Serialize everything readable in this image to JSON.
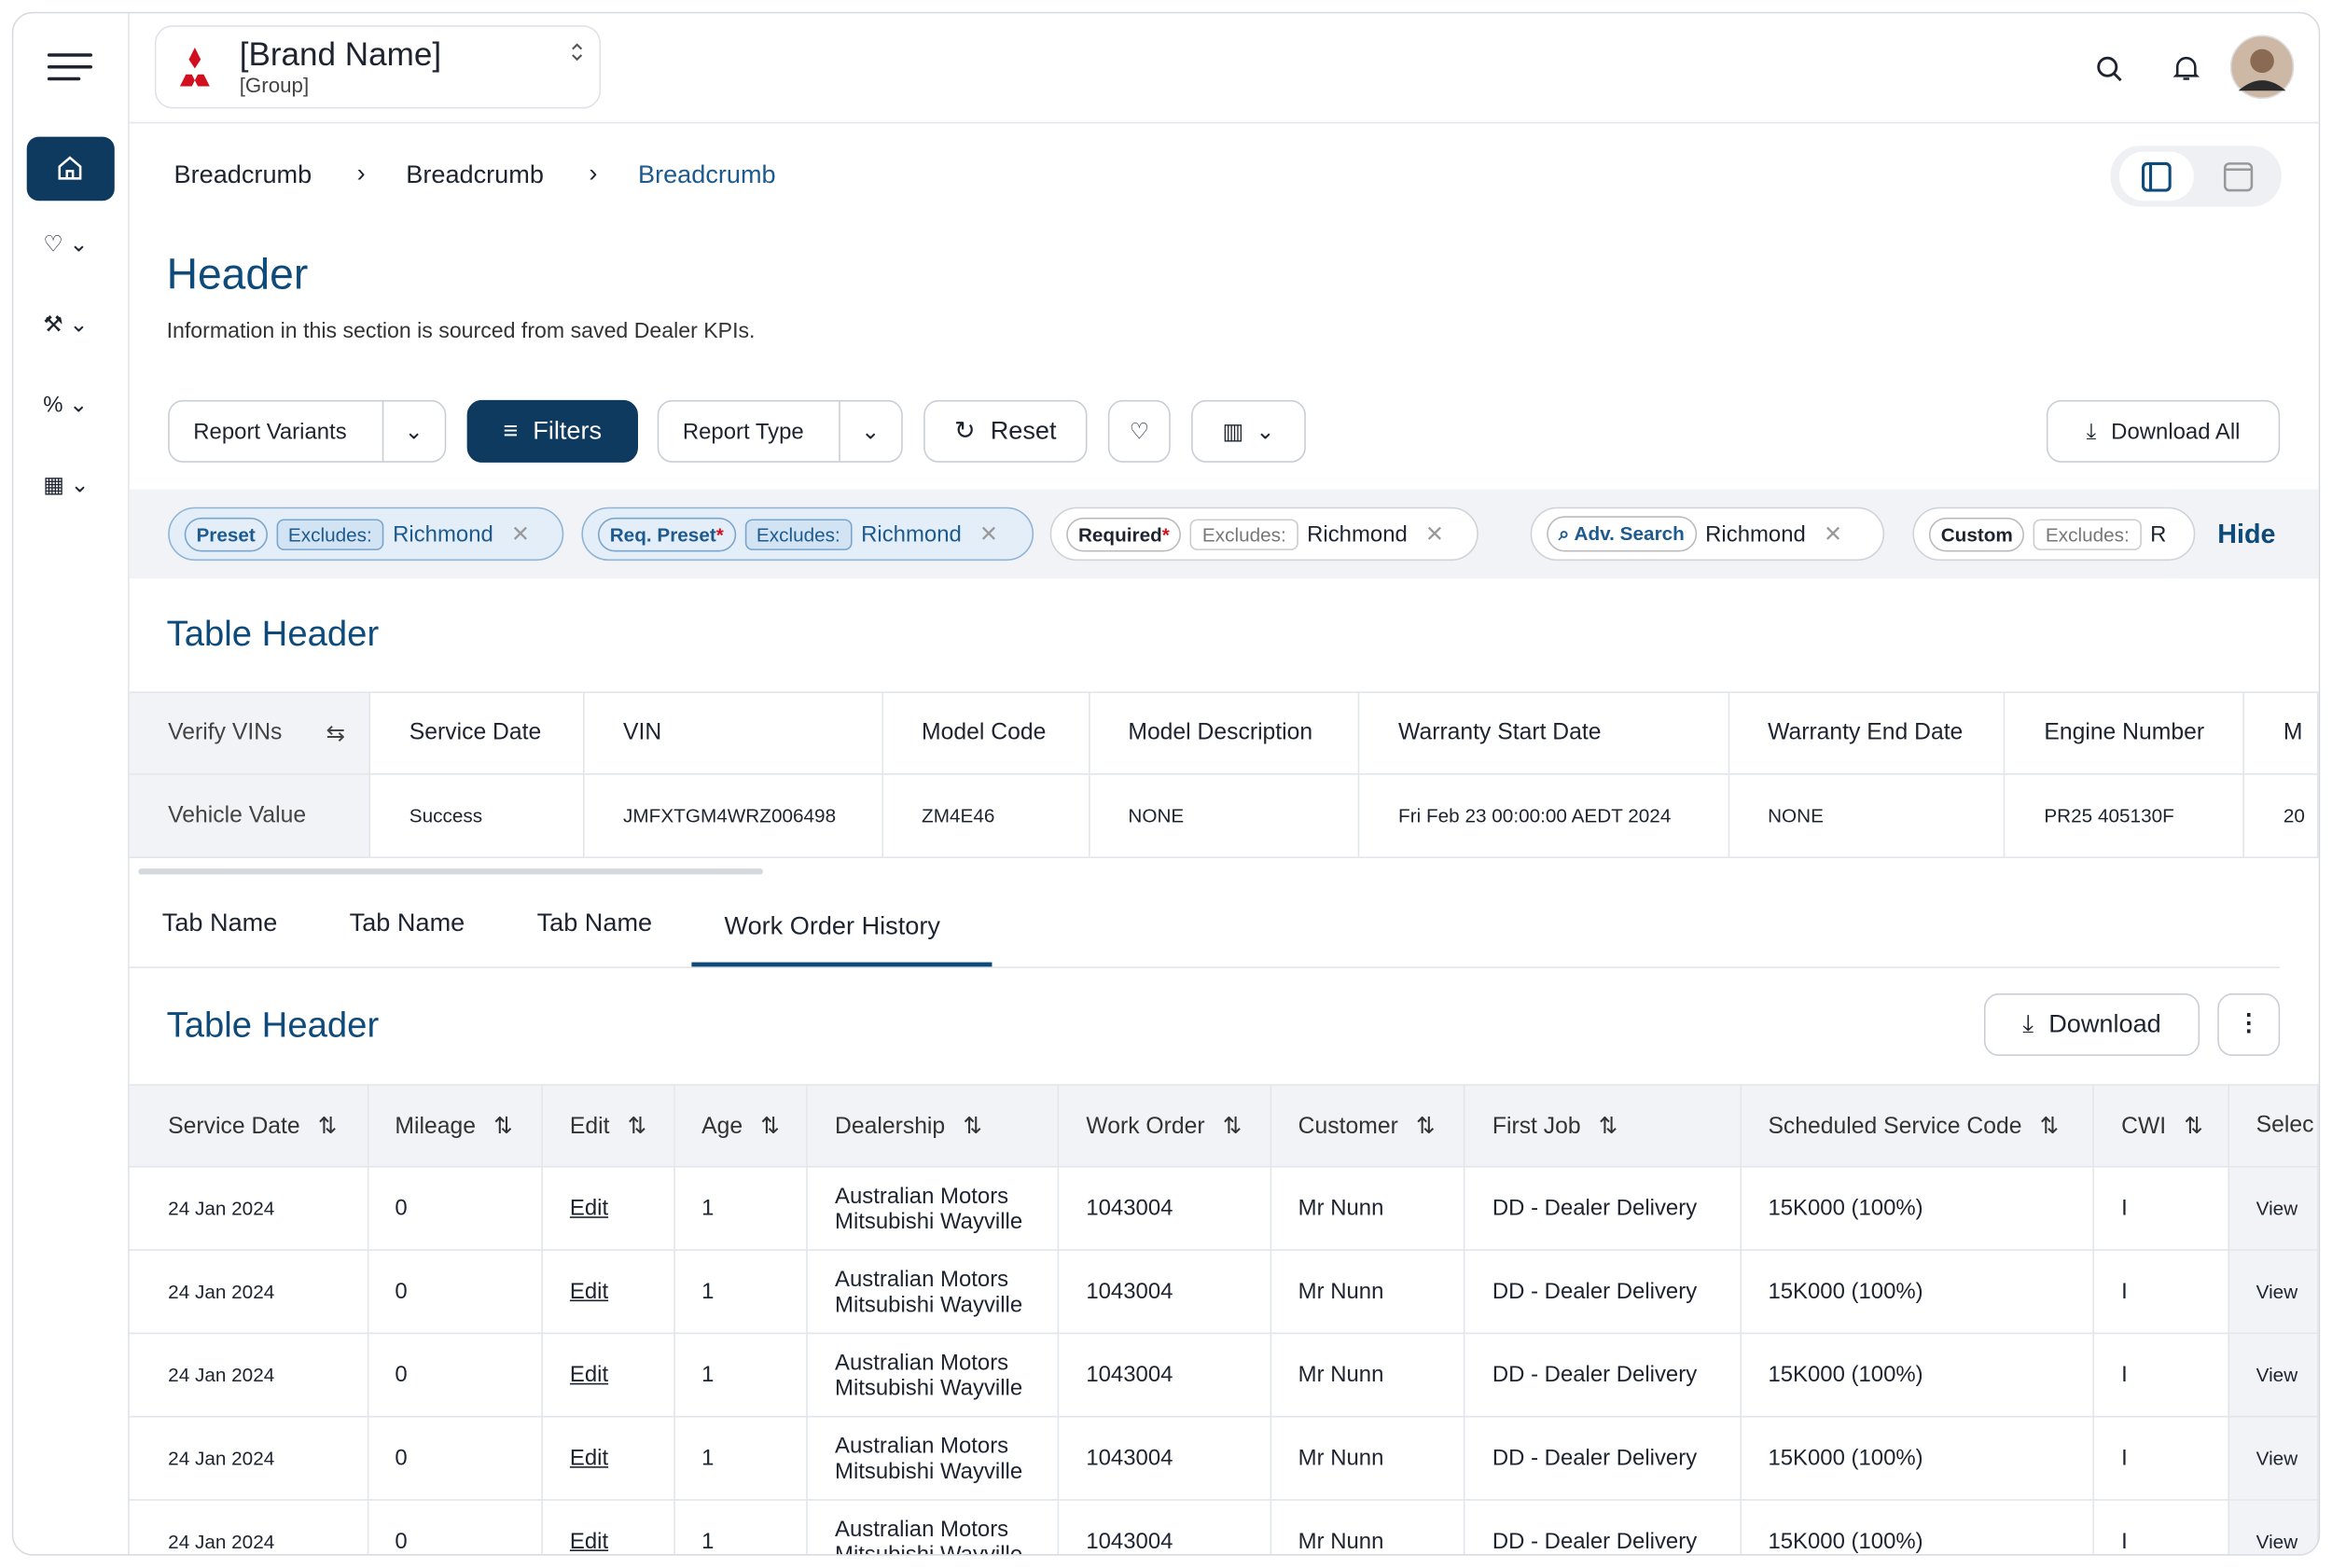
{
  "brand": {
    "name": "[Brand Name]",
    "group": "[Group]"
  },
  "breadcrumbs": [
    "Breadcrumb",
    "Breadcrumb",
    "Breadcrumb"
  ],
  "header": {
    "title": "Header",
    "subtitle": "Information in this section is sourced from saved Dealer KPIs."
  },
  "toolbar": {
    "report_variants": "Report Variants",
    "filters": "Filters",
    "report_type": "Report Type",
    "reset": "Reset",
    "download_all": "Download All"
  },
  "chips": [
    {
      "tag": "Preset",
      "label": "Excludes:",
      "value": "Richmond"
    },
    {
      "tag": "Req. Preset",
      "required": "*",
      "label": "Excludes:",
      "value": "Richmond"
    },
    {
      "tag": "Required",
      "required": "*",
      "label": "Excludes:",
      "value": "Richmond"
    },
    {
      "tag": "Adv. Search",
      "value": "Richmond"
    },
    {
      "tag": "Custom",
      "label": "Excludes:",
      "value": "R"
    }
  ],
  "hide": "Hide",
  "vin_table": {
    "title": "Table Header",
    "columns": [
      "Verify VINs",
      "Service Date",
      "VIN",
      "Model Code",
      "Model Description",
      "Warranty Start Date",
      "Warranty End Date",
      "Engine Number",
      "M"
    ],
    "row": [
      "Vehicle Value",
      "Success",
      "JMFXTGM4WRZ006498",
      "ZM4E46",
      "NONE",
      "Fri Feb 23 00:00:00 AEDT 2024",
      "NONE",
      "PR25 405130F",
      "20"
    ]
  },
  "tabs": [
    "Tab Name",
    "Tab Name",
    "Tab Name",
    "Work Order History"
  ],
  "work_orders": {
    "title": "Table Header",
    "download": "Download",
    "columns": [
      "Service Date",
      "Mileage",
      "Edit",
      "Age",
      "Dealership",
      "Work Order",
      "Customer",
      "First Job",
      "Scheduled Service Code",
      "CWI",
      "Selec"
    ],
    "rows": [
      [
        "24 Jan 2024",
        "0",
        "Edit",
        "1",
        "Australian Motors Mitsubishi Wayville",
        "1043004",
        "Mr Nunn",
        "DD - Dealer Delivery",
        "15K000 (100%)",
        "I",
        "View"
      ],
      [
        "24 Jan 2024",
        "0",
        "Edit",
        "1",
        "Australian Motors Mitsubishi Wayville",
        "1043004",
        "Mr Nunn",
        "DD - Dealer Delivery",
        "15K000 (100%)",
        "I",
        "View"
      ],
      [
        "24 Jan 2024",
        "0",
        "Edit",
        "1",
        "Australian Motors Mitsubishi Wayville",
        "1043004",
        "Mr Nunn",
        "DD - Dealer Delivery",
        "15K000 (100%)",
        "I",
        "View"
      ],
      [
        "24 Jan 2024",
        "0",
        "Edit",
        "1",
        "Australian Motors Mitsubishi Wayville",
        "1043004",
        "Mr Nunn",
        "DD - Dealer Delivery",
        "15K000 (100%)",
        "I",
        "View"
      ],
      [
        "24 Jan 2024",
        "0",
        "Edit",
        "1",
        "Australian Motors Mitsubishi Wayville",
        "1043004",
        "Mr Nunn",
        "DD - Dealer Delivery",
        "15K000 (100%)",
        "I",
        "View"
      ]
    ]
  }
}
